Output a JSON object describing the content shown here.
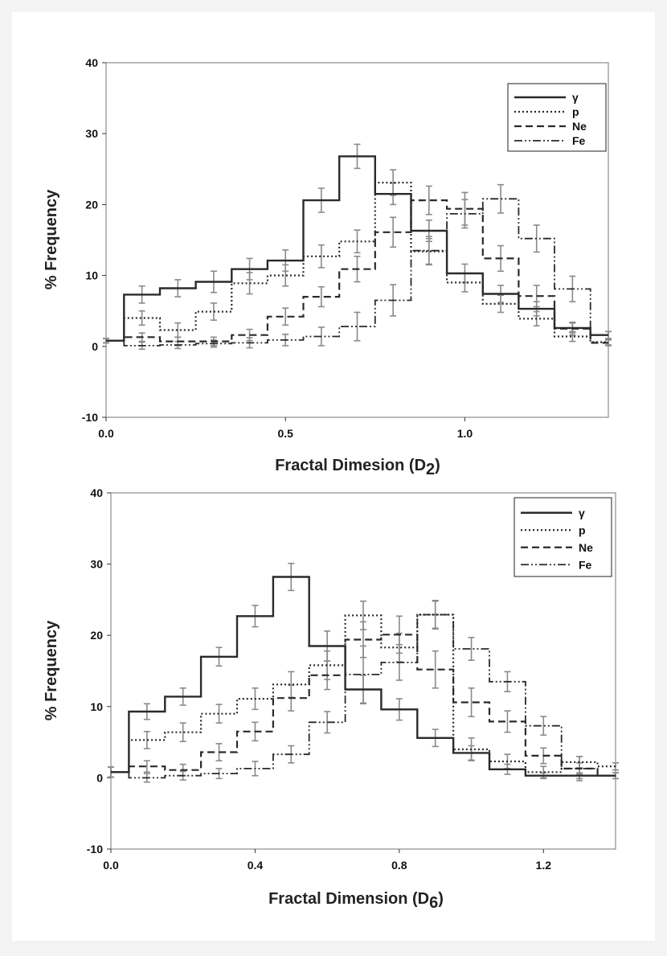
{
  "chart_data": [
    {
      "type": "step",
      "title": "",
      "xlabel": "Fractal Dimesion (D",
      "xlabel_sub": "2",
      "xlabel_end": ")",
      "ylabel": "% Frequency",
      "xlim": [
        0,
        1.4
      ],
      "ylim": [
        -10,
        40
      ],
      "xticks": [
        0.0,
        0.5,
        1.0
      ],
      "xtick_labels": [
        "0.0",
        "0.5",
        "1.0"
      ],
      "yticks": [
        -10,
        0,
        10,
        20,
        30,
        40
      ],
      "ytick_labels": [
        "-10",
        "0",
        "10",
        "20",
        "30",
        "40"
      ],
      "grid": false,
      "legend_position": "top-right",
      "bin_centers": [
        0.0,
        0.1,
        0.2,
        0.3,
        0.4,
        0.5,
        0.6,
        0.7,
        0.8,
        0.9,
        1.0,
        1.1,
        1.2,
        1.3,
        1.4
      ],
      "series": [
        {
          "name": "γ",
          "dash": "solid",
          "values": [
            0.8,
            7.3,
            8.2,
            9.1,
            10.9,
            12.1,
            20.6,
            26.8,
            21.5,
            16.3,
            10.3,
            7.4,
            5.3,
            2.6,
            1.6
          ],
          "errors": [
            0.3,
            1.2,
            1.2,
            1.5,
            1.5,
            1.5,
            1.7,
            1.7,
            1.5,
            1.5,
            1.3,
            1.2,
            1.0,
            0.7,
            0.5
          ]
        },
        {
          "name": "p",
          "dash": "dotted",
          "values": [
            0.8,
            4.0,
            2.3,
            4.9,
            8.9,
            10.0,
            12.7,
            14.8,
            23.1,
            13.4,
            9.0,
            6.0,
            3.9,
            1.4,
            0.6
          ],
          "errors": [
            0.3,
            1.0,
            1.0,
            1.2,
            1.5,
            1.5,
            1.6,
            1.6,
            1.8,
            1.8,
            1.3,
            1.2,
            1.0,
            0.7,
            0.4
          ]
        },
        {
          "name": "Ne",
          "dash": "dashed",
          "values": [
            0.8,
            1.3,
            0.7,
            0.7,
            1.6,
            4.2,
            7.0,
            10.9,
            16.1,
            20.6,
            19.4,
            12.4,
            7.1,
            2.5,
            0.5
          ],
          "errors": [
            0.3,
            0.6,
            0.6,
            0.6,
            0.8,
            1.2,
            1.4,
            1.8,
            2.1,
            2.0,
            2.3,
            1.8,
            1.5,
            0.9,
            0.4
          ]
        },
        {
          "name": "Fe",
          "dash": "dashdot",
          "values": [
            0.8,
            0.1,
            0.2,
            0.4,
            0.5,
            0.9,
            1.4,
            2.8,
            6.5,
            13.5,
            18.7,
            20.8,
            15.2,
            8.1,
            1.6
          ],
          "errors": [
            0.3,
            0.5,
            0.5,
            0.5,
            0.7,
            0.8,
            1.3,
            2.0,
            2.2,
            2.0,
            2.0,
            2.0,
            1.9,
            1.8,
            0.5
          ]
        }
      ]
    },
    {
      "type": "step",
      "title": "",
      "xlabel": "Fractal Dimension (D",
      "xlabel_sub": "6",
      "xlabel_end": ")",
      "ylabel": "% Frequency",
      "xlim": [
        0,
        1.4
      ],
      "ylim": [
        -10,
        40
      ],
      "xticks": [
        0.0,
        0.4,
        0.8,
        1.2
      ],
      "xtick_labels": [
        "0.0",
        "0.4",
        "0.8",
        "1.2"
      ],
      "yticks": [
        -10,
        0,
        10,
        20,
        30,
        40
      ],
      "ytick_labels": [
        "-10",
        "0",
        "10",
        "20",
        "30",
        "40"
      ],
      "grid": false,
      "legend_position": "top-right",
      "bin_centers": [
        0.0,
        0.1,
        0.2,
        0.3,
        0.4,
        0.5,
        0.6,
        0.7,
        0.8,
        0.9,
        1.0,
        1.1,
        1.2,
        1.3,
        1.4
      ],
      "series": [
        {
          "name": "γ",
          "dash": "solid",
          "values": [
            0.8,
            9.3,
            11.4,
            17.0,
            22.7,
            28.2,
            18.5,
            12.4,
            9.6,
            5.6,
            3.5,
            1.2,
            0.3,
            0.3,
            0.3
          ],
          "errors": [
            0.7,
            1.1,
            1.2,
            1.3,
            1.5,
            1.9,
            2.1,
            2.0,
            1.5,
            1.2,
            1.0,
            0.7,
            0.4,
            0.4,
            0.4
          ]
        },
        {
          "name": "p",
          "dash": "dotted",
          "values": [
            0.8,
            5.3,
            6.4,
            9.0,
            11.1,
            13.1,
            15.8,
            22.8,
            18.3,
            22.9,
            4.0,
            2.3,
            0.8,
            2.2,
            1.6
          ],
          "errors": [
            0.7,
            1.2,
            1.3,
            1.3,
            1.5,
            1.8,
            2.0,
            2.0,
            2.0,
            2.0,
            1.6,
            1.0,
            0.8,
            0.8,
            0.5
          ]
        },
        {
          "name": "Ne",
          "dash": "dashed",
          "values": [
            0.8,
            1.6,
            1.1,
            3.6,
            6.5,
            11.2,
            14.4,
            19.4,
            20.1,
            15.2,
            10.6,
            7.9,
            3.1,
            1.3,
            0.3
          ],
          "errors": [
            0.7,
            0.8,
            0.8,
            1.2,
            1.3,
            1.8,
            2.0,
            2.5,
            2.6,
            2.6,
            2.0,
            1.5,
            1.1,
            0.8,
            0.4
          ]
        },
        {
          "name": "Fe",
          "dash": "dashdot",
          "values": [
            0.8,
            0.0,
            0.3,
            0.6,
            1.3,
            3.3,
            7.8,
            14.5,
            16.2,
            22.9,
            18.1,
            13.5,
            7.3,
            1.3,
            0.3
          ],
          "errors": [
            0.7,
            0.6,
            0.6,
            0.7,
            1.0,
            1.2,
            1.5,
            4.0,
            2.5,
            1.9,
            1.6,
            1.4,
            1.3,
            1.7,
            0.4
          ]
        }
      ]
    }
  ]
}
